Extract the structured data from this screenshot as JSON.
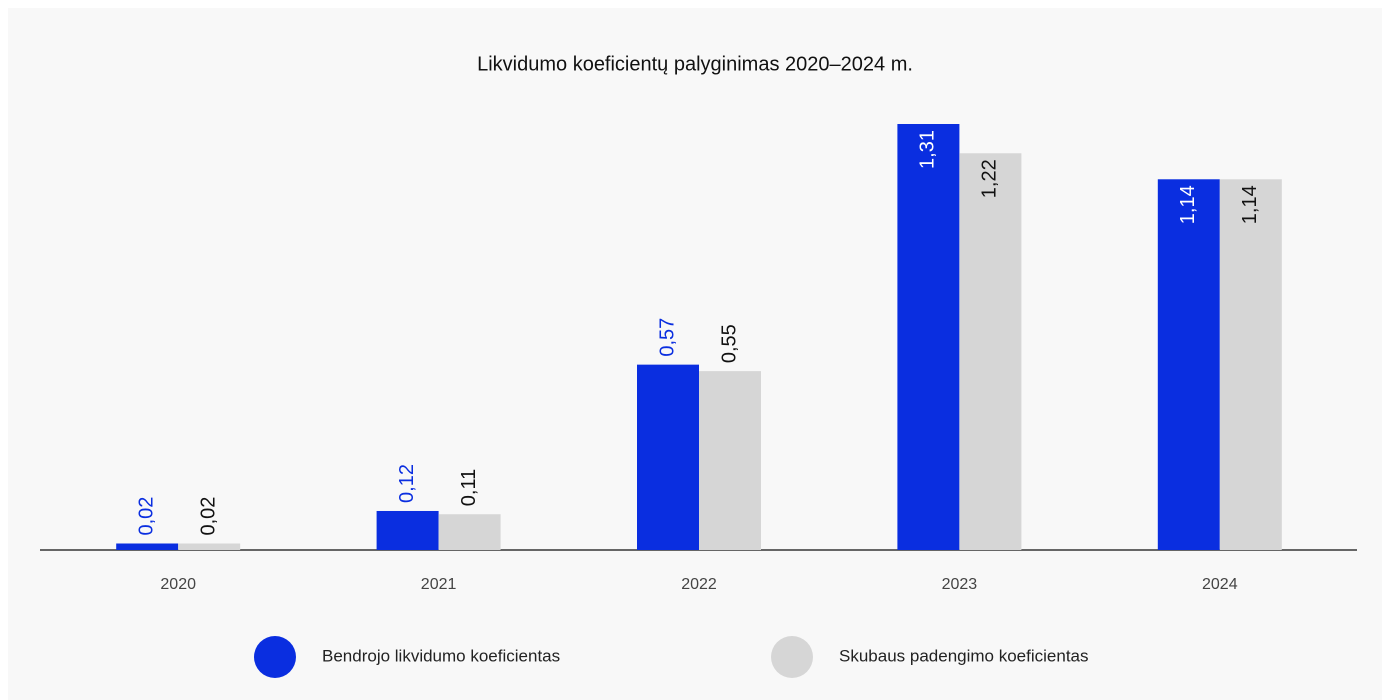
{
  "chart_data": {
    "type": "bar",
    "title": "Likvidumo koeficientų palyginimas 2020–2024 m.",
    "categories": [
      "2020",
      "2021",
      "2022",
      "2023",
      "2024"
    ],
    "series": [
      {
        "name": "Bendrojo likvidumo koeficientas",
        "color": "#0a2ee0",
        "values": [
          0.02,
          0.12,
          0.57,
          1.31,
          1.14
        ],
        "value_labels": [
          "0,02",
          "0,12",
          "0,57",
          "1,31",
          "1,14"
        ]
      },
      {
        "name": "Skubaus padengimo koeficientas",
        "color": "#d6d6d6",
        "values": [
          0.02,
          0.11,
          0.55,
          1.22,
          1.14
        ],
        "value_labels": [
          "0,02",
          "0,11",
          "0,55",
          "1,22",
          "1,14"
        ]
      }
    ],
    "legend": "bottom"
  }
}
